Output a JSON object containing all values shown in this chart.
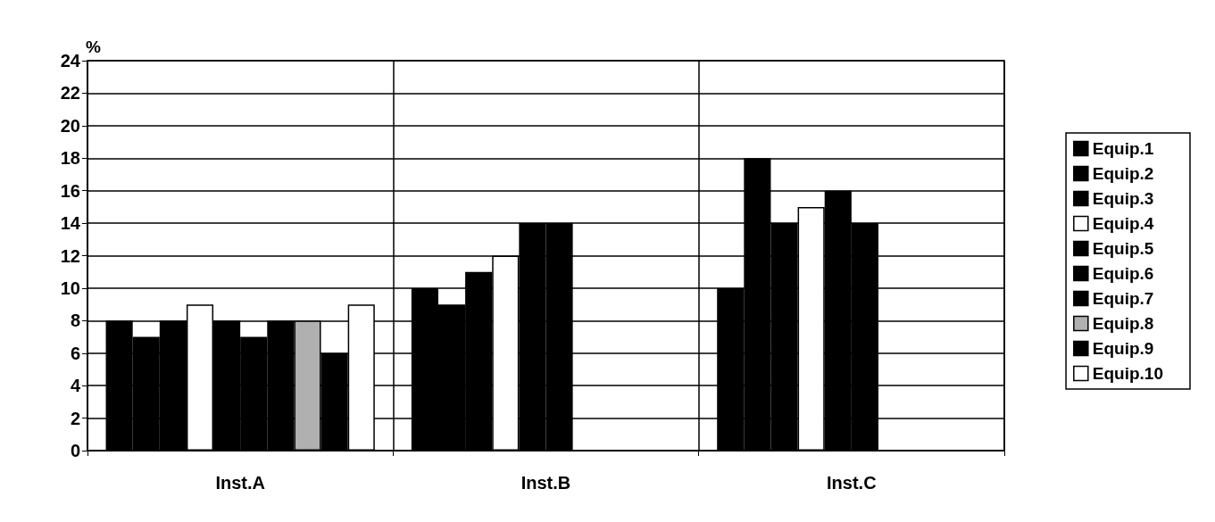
{
  "chart_data": {
    "type": "bar",
    "ylabel": "%",
    "categories": [
      "Inst.A",
      "Inst.B",
      "Inst.C"
    ],
    "series": [
      {
        "name": "Equip.1",
        "color": "#000000",
        "values": [
          8,
          10,
          10
        ]
      },
      {
        "name": "Equip.2",
        "color": "#000000",
        "values": [
          7,
          9,
          18
        ]
      },
      {
        "name": "Equip.3",
        "color": "#000000",
        "values": [
          8,
          11,
          14
        ]
      },
      {
        "name": "Equip.4",
        "color": "#ffffff",
        "values": [
          9,
          12,
          15
        ]
      },
      {
        "name": "Equip.5",
        "color": "#000000",
        "values": [
          8,
          14,
          16
        ]
      },
      {
        "name": "Equip.6",
        "color": "#000000",
        "values": [
          7,
          14,
          14
        ]
      },
      {
        "name": "Equip.7",
        "color": "#000000",
        "values": [
          8,
          null,
          null
        ]
      },
      {
        "name": "Equip.8",
        "color": "#b0b0b0",
        "values": [
          8,
          null,
          null
        ]
      },
      {
        "name": "Equip.9",
        "color": "#000000",
        "values": [
          6,
          null,
          null
        ]
      },
      {
        "name": "Equip.10",
        "color": "#ffffff",
        "values": [
          9,
          null,
          null
        ]
      }
    ],
    "ylim": [
      0,
      24
    ],
    "yticks": [
      0,
      2,
      4,
      6,
      8,
      10,
      12,
      14,
      16,
      18,
      20,
      22,
      24
    ],
    "grid": "y",
    "legend": "right"
  }
}
